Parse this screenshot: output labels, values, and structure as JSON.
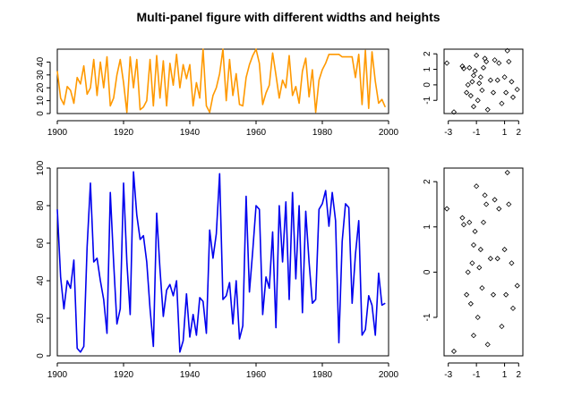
{
  "figure": {
    "title": "Multi-panel figure with different widths and heights"
  },
  "chart_data": [
    {
      "id": "top-line",
      "type": "line",
      "color": "#ff9900",
      "title": "",
      "xlabel": "",
      "ylabel": "",
      "xlim": [
        1900,
        2000
      ],
      "ylim": [
        0,
        50
      ],
      "xticks": [
        1900,
        1920,
        1940,
        1960,
        1980,
        2000
      ],
      "yticks": [
        0,
        10,
        20,
        30,
        40
      ],
      "x": [
        1900,
        1901,
        1902,
        1903,
        1904,
        1905,
        1906,
        1907,
        1908,
        1909,
        1910,
        1911,
        1912,
        1913,
        1914,
        1915,
        1916,
        1917,
        1918,
        1919,
        1920,
        1921,
        1922,
        1923,
        1924,
        1925,
        1926,
        1927,
        1928,
        1929,
        1930,
        1931,
        1932,
        1933,
        1934,
        1935,
        1936,
        1937,
        1938,
        1939,
        1940,
        1941,
        1942,
        1943,
        1944,
        1945,
        1946,
        1947,
        1948,
        1949,
        1950,
        1951,
        1952,
        1953,
        1954,
        1955,
        1956,
        1957,
        1958,
        1959,
        1960,
        1961,
        1962,
        1963,
        1964,
        1965,
        1966,
        1967,
        1968,
        1969,
        1970,
        1971,
        1972,
        1973,
        1974,
        1975,
        1976,
        1977,
        1978,
        1979,
        1980,
        1981,
        1982,
        1983,
        1984,
        1985,
        1986,
        1987,
        1988,
        1989,
        1990,
        1991,
        1992,
        1993,
        1994,
        1995,
        1996,
        1997,
        1998,
        1999
      ],
      "values": [
        33,
        12,
        7,
        21,
        18,
        8,
        28,
        23,
        37,
        15,
        20,
        42,
        14,
        40,
        20,
        44,
        6,
        12,
        30,
        42,
        24,
        1,
        44,
        20,
        42,
        3,
        5,
        10,
        42,
        6,
        45,
        12,
        41,
        6,
        39,
        22,
        46,
        20,
        38,
        27,
        38,
        6,
        24,
        12,
        50,
        6,
        1,
        14,
        20,
        31,
        50,
        10,
        42,
        14,
        31,
        7,
        6,
        28,
        38,
        45,
        50,
        39,
        7,
        16,
        22,
        47,
        30,
        12,
        26,
        20,
        45,
        14,
        21,
        8,
        33,
        43,
        13,
        34,
        1,
        26,
        34,
        39,
        46,
        46,
        46,
        46,
        44,
        44,
        44,
        44,
        28,
        46,
        7,
        49,
        4,
        48,
        25,
        8,
        11,
        5
      ],
      "series_style": "line"
    },
    {
      "id": "top-scatter",
      "type": "scatter",
      "title": "",
      "xlabel": "",
      "ylabel": "",
      "xlim": [
        -3.3,
        2.3
      ],
      "ylim": [
        -1.85,
        2.3
      ],
      "xticks": [
        -3,
        -1,
        1,
        2
      ],
      "yticks": [
        -1,
        0,
        1,
        2
      ],
      "x": [
        -3.1,
        -2.6,
        -2.0,
        -1.9,
        -1.7,
        -1.6,
        -1.5,
        -1.4,
        -1.3,
        -1.2,
        -1.2,
        -1.1,
        -1.0,
        -0.9,
        -0.8,
        -0.7,
        -0.6,
        -0.5,
        -0.4,
        -0.3,
        -0.2,
        0.0,
        0.2,
        0.3,
        0.5,
        0.6,
        0.8,
        1.0,
        1.1,
        1.2,
        1.3,
        1.5,
        1.6,
        1.9
      ],
      "y": [
        1.4,
        -1.75,
        1.2,
        1.05,
        -0.5,
        0.0,
        1.1,
        -0.7,
        0.2,
        0.6,
        -1.4,
        0.9,
        1.9,
        -1.0,
        0.1,
        0.5,
        -0.35,
        1.1,
        1.7,
        1.5,
        -1.6,
        0.3,
        -0.5,
        1.6,
        0.3,
        1.4,
        -1.2,
        0.5,
        -0.5,
        2.2,
        1.5,
        0.2,
        -0.8,
        -0.3
      ]
    },
    {
      "id": "bottom-line",
      "type": "line",
      "color": "#0000ee",
      "title": "",
      "xlabel": "",
      "ylabel": "",
      "xlim": [
        1900,
        2000
      ],
      "ylim": [
        0,
        100
      ],
      "xticks": [
        1900,
        1920,
        1940,
        1960,
        1980,
        2000
      ],
      "yticks": [
        0,
        20,
        40,
        60,
        80,
        100
      ],
      "x": [
        1900,
        1901,
        1902,
        1903,
        1904,
        1905,
        1906,
        1907,
        1908,
        1909,
        1910,
        1911,
        1912,
        1913,
        1914,
        1915,
        1916,
        1917,
        1918,
        1919,
        1920,
        1921,
        1922,
        1923,
        1924,
        1925,
        1926,
        1927,
        1928,
        1929,
        1930,
        1931,
        1932,
        1933,
        1934,
        1935,
        1936,
        1937,
        1938,
        1939,
        1940,
        1941,
        1942,
        1943,
        1944,
        1945,
        1946,
        1947,
        1948,
        1949,
        1950,
        1951,
        1952,
        1953,
        1954,
        1955,
        1956,
        1957,
        1958,
        1959,
        1960,
        1961,
        1962,
        1963,
        1964,
        1965,
        1966,
        1967,
        1968,
        1969,
        1970,
        1971,
        1972,
        1973,
        1974,
        1975,
        1976,
        1977,
        1978,
        1979,
        1980,
        1981,
        1982,
        1983,
        1984,
        1985,
        1986,
        1987,
        1988,
        1989,
        1990,
        1991,
        1992,
        1993,
        1994,
        1995,
        1996,
        1997,
        1998,
        1999
      ],
      "values": [
        78,
        42,
        25,
        40,
        36,
        51,
        4,
        2,
        5,
        58,
        92,
        50,
        52,
        40,
        30,
        12,
        87,
        50,
        17,
        25,
        92,
        50,
        22,
        98,
        75,
        62,
        64,
        50,
        25,
        5,
        76,
        46,
        21,
        35,
        38,
        32,
        40,
        2,
        8,
        33,
        10,
        22,
        11,
        31,
        29,
        12,
        67,
        52,
        65,
        97,
        30,
        32,
        39,
        17,
        40,
        9,
        16,
        85,
        34,
        56,
        80,
        78,
        22,
        42,
        36,
        66,
        15,
        80,
        50,
        82,
        30,
        87,
        41,
        80,
        23,
        77,
        50,
        28,
        30,
        78,
        81,
        88,
        69,
        87,
        72,
        7,
        61,
        81,
        79,
        28,
        54,
        72,
        11,
        14,
        32,
        27,
        11,
        44,
        27,
        28
      ],
      "series_style": "line"
    },
    {
      "id": "bottom-scatter",
      "type": "scatter",
      "title": "",
      "xlabel": "",
      "ylabel": "",
      "xlim": [
        -3.3,
        2.3
      ],
      "ylim": [
        -1.85,
        2.3
      ],
      "xticks": [
        -3,
        -1,
        1,
        2
      ],
      "yticks": [
        -1,
        0,
        1,
        2
      ],
      "x": [
        -3.1,
        -2.6,
        -2.0,
        -1.9,
        -1.7,
        -1.6,
        -1.5,
        -1.4,
        -1.3,
        -1.2,
        -1.2,
        -1.1,
        -1.0,
        -0.9,
        -0.8,
        -0.7,
        -0.6,
        -0.5,
        -0.4,
        -0.3,
        -0.2,
        0.0,
        0.2,
        0.3,
        0.5,
        0.6,
        0.8,
        1.0,
        1.1,
        1.2,
        1.3,
        1.5,
        1.6,
        1.9
      ],
      "y": [
        1.4,
        -1.75,
        1.2,
        1.05,
        -0.5,
        0.0,
        1.1,
        -0.7,
        0.2,
        0.6,
        -1.4,
        0.9,
        1.9,
        -1.0,
        0.1,
        0.5,
        -0.35,
        1.1,
        1.7,
        1.5,
        -1.6,
        0.3,
        -0.5,
        1.6,
        0.3,
        1.4,
        -1.2,
        0.5,
        -0.5,
        2.2,
        1.5,
        0.2,
        -0.8,
        -0.3
      ]
    }
  ]
}
